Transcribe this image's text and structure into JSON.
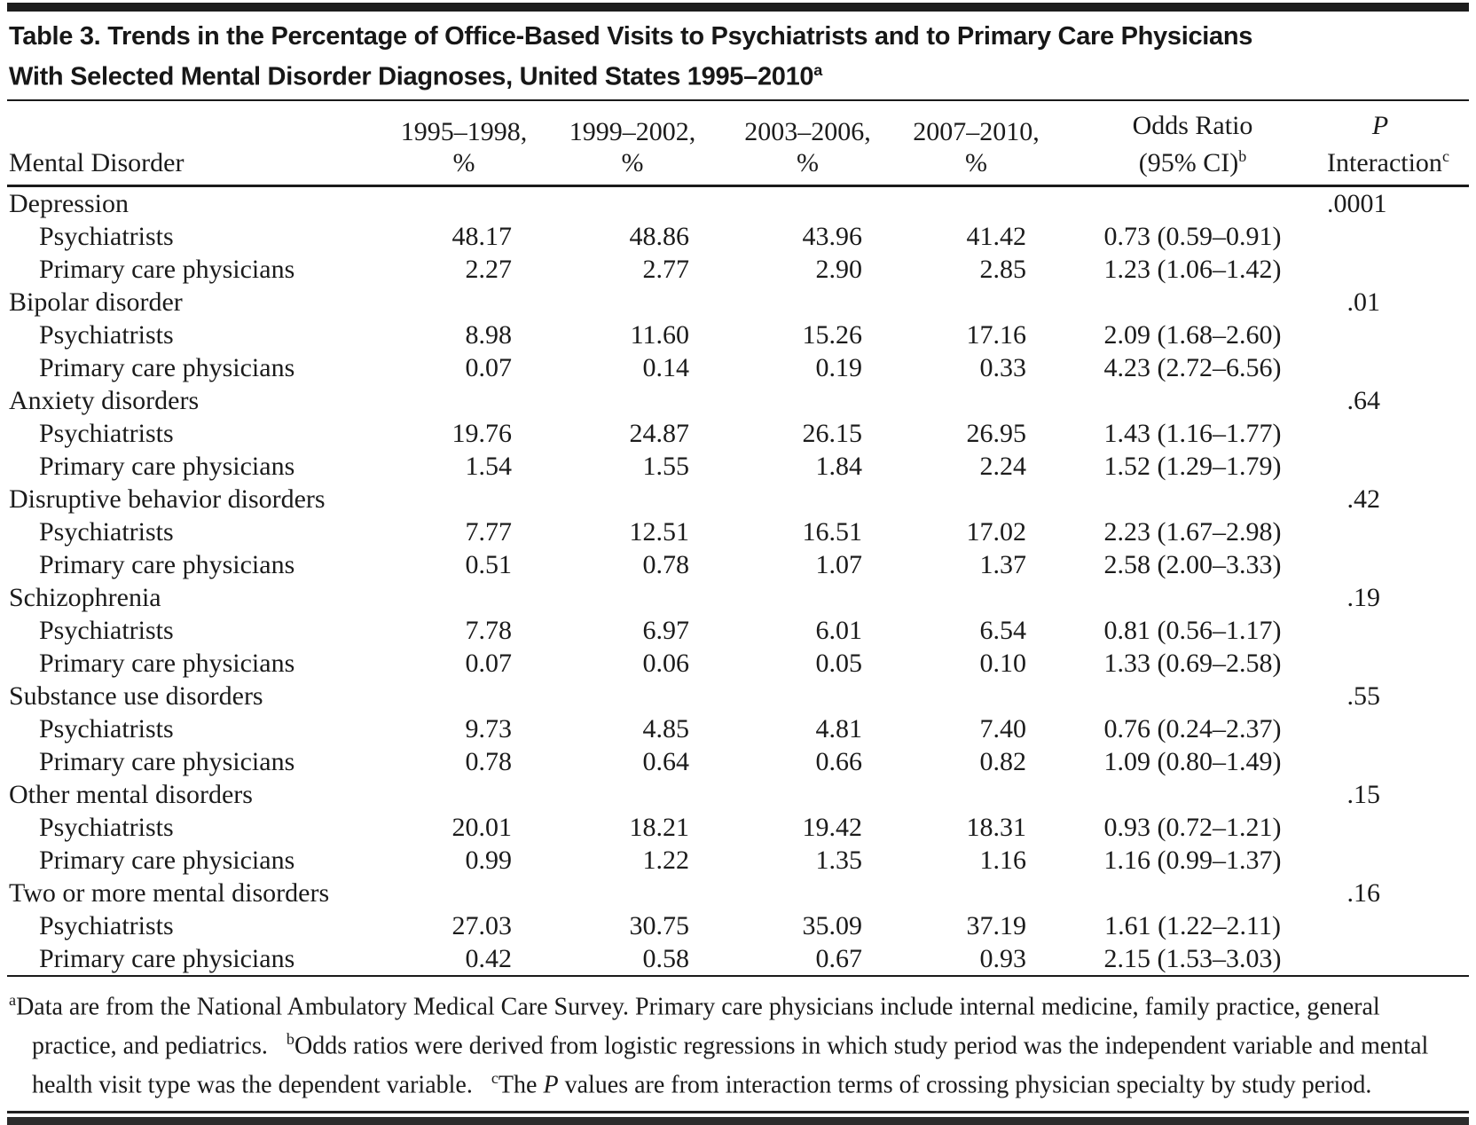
{
  "page": {
    "title_line1": "Table 3. Trends in the Percentage of Office-Based Visits to Psychiatrists and to Primary Care Physicians",
    "title_line2": "With Selected Mental Disorder Diagnoses, United States 1995–2010",
    "title_superscript": "a"
  },
  "colors": {
    "ink": "#1b1b1b",
    "rule": "#1a1a1a"
  },
  "table": {
    "columns": [
      {
        "top": "",
        "bottom": "Mental Disorder"
      },
      {
        "top": "1995–1998,",
        "bottom": "%"
      },
      {
        "top": "1999–2002,",
        "bottom": "%"
      },
      {
        "top": "2003–2006,",
        "bottom": "%"
      },
      {
        "top": "2007–2010,",
        "bottom": "%"
      },
      {
        "top": "Odds Ratio",
        "bottom": "(95% CI)",
        "sup": "b"
      },
      {
        "top": "P",
        "top_italic": true,
        "bottom": "Interaction",
        "sup": "c"
      }
    ],
    "groups": [
      {
        "disorder": "Depression",
        "p_interaction": ".0001",
        "rows": [
          {
            "label": "Psychiatrists",
            "values": [
              "48.17",
              "48.86",
              "43.96",
              "41.42"
            ],
            "odds_ratio": "0.73 (0.59–0.91)"
          },
          {
            "label": "Primary care physicians",
            "values": [
              "2.27",
              "2.77",
              "2.90",
              "2.85"
            ],
            "odds_ratio": "1.23 (1.06–1.42)"
          }
        ]
      },
      {
        "disorder": "Bipolar disorder",
        "p_interaction": ".01",
        "rows": [
          {
            "label": "Psychiatrists",
            "values": [
              "8.98",
              "11.60",
              "15.26",
              "17.16"
            ],
            "odds_ratio": "2.09 (1.68–2.60)"
          },
          {
            "label": "Primary care physicians",
            "values": [
              "0.07",
              "0.14",
              "0.19",
              "0.33"
            ],
            "odds_ratio": "4.23 (2.72–6.56)"
          }
        ]
      },
      {
        "disorder": "Anxiety disorders",
        "p_interaction": ".64",
        "rows": [
          {
            "label": "Psychiatrists",
            "values": [
              "19.76",
              "24.87",
              "26.15",
              "26.95"
            ],
            "odds_ratio": "1.43 (1.16–1.77)"
          },
          {
            "label": "Primary care physicians",
            "values": [
              "1.54",
              "1.55",
              "1.84",
              "2.24"
            ],
            "odds_ratio": "1.52 (1.29–1.79)"
          }
        ]
      },
      {
        "disorder": "Disruptive behavior disorders",
        "p_interaction": ".42",
        "rows": [
          {
            "label": "Psychiatrists",
            "values": [
              "7.77",
              "12.51",
              "16.51",
              "17.02"
            ],
            "odds_ratio": "2.23 (1.67–2.98)"
          },
          {
            "label": "Primary care physicians",
            "values": [
              "0.51",
              "0.78",
              "1.07",
              "1.37"
            ],
            "odds_ratio": "2.58 (2.00–3.33)"
          }
        ]
      },
      {
        "disorder": "Schizophrenia",
        "p_interaction": ".19",
        "rows": [
          {
            "label": "Psychiatrists",
            "values": [
              "7.78",
              "6.97",
              "6.01",
              "6.54"
            ],
            "odds_ratio": "0.81 (0.56–1.17)"
          },
          {
            "label": "Primary care physicians",
            "values": [
              "0.07",
              "0.06",
              "0.05",
              "0.10"
            ],
            "odds_ratio": "1.33 (0.69–2.58)"
          }
        ]
      },
      {
        "disorder": "Substance use disorders",
        "p_interaction": ".55",
        "rows": [
          {
            "label": "Psychiatrists",
            "values": [
              "9.73",
              "4.85",
              "4.81",
              "7.40"
            ],
            "odds_ratio": "0.76 (0.24–2.37)"
          },
          {
            "label": "Primary care physicians",
            "values": [
              "0.78",
              "0.64",
              "0.66",
              "0.82"
            ],
            "odds_ratio": "1.09 (0.80–1.49)"
          }
        ]
      },
      {
        "disorder": "Other mental disorders",
        "p_interaction": ".15",
        "rows": [
          {
            "label": "Psychiatrists",
            "values": [
              "20.01",
              "18.21",
              "19.42",
              "18.31"
            ],
            "odds_ratio": "0.93 (0.72–1.21)"
          },
          {
            "label": "Primary care physicians",
            "values": [
              "0.99",
              "1.22",
              "1.35",
              "1.16"
            ],
            "odds_ratio": "1.16 (0.99–1.37)"
          }
        ]
      },
      {
        "disorder": "Two or more mental disorders",
        "p_interaction": ".16",
        "rows": [
          {
            "label": "Psychiatrists",
            "values": [
              "27.03",
              "30.75",
              "35.09",
              "37.19"
            ],
            "odds_ratio": "1.61 (1.22–2.11)"
          },
          {
            "label": "Primary care physicians",
            "values": [
              "0.42",
              "0.58",
              "0.67",
              "0.93"
            ],
            "odds_ratio": "2.15 (1.53–3.03)"
          }
        ]
      }
    ]
  },
  "footnotes": [
    {
      "sup": "a",
      "text": "Data are from the National Ambulatory Medical Care Survey. Primary care physicians include internal medicine, family practice, general practice, and pediatrics."
    },
    {
      "sup": "b",
      "text": "Odds ratios were derived from logistic regressions in which study period was the independent variable and mental health visit type was the dependent variable."
    },
    {
      "sup": "c",
      "pre": "The ",
      "italic": "P",
      "post": " values are from interaction terms of crossing physician specialty by study period."
    }
  ]
}
